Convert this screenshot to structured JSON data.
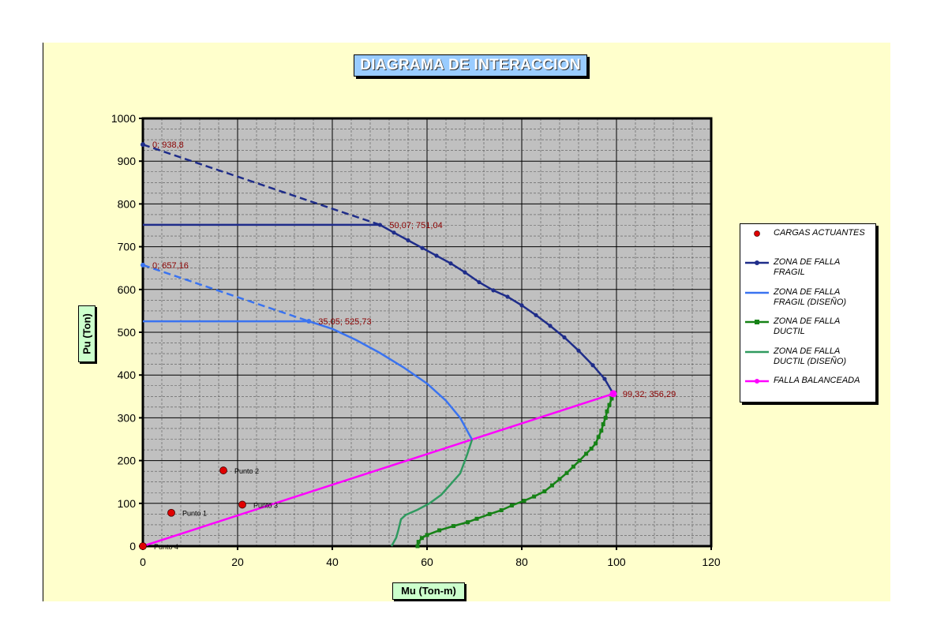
{
  "title": "DIAGRAMA  DE INTERACCION",
  "chart_data": {
    "type": "line",
    "title": "DIAGRAMA  DE INTERACCION",
    "xlabel": "Mu (Ton-m)",
    "ylabel": "Pu (Ton)",
    "xlim": [
      0,
      120
    ],
    "ylim": [
      0,
      1000
    ],
    "xticks": [
      0,
      20,
      40,
      60,
      80,
      100,
      120
    ],
    "yticks": [
      0,
      100,
      200,
      300,
      400,
      500,
      600,
      700,
      800,
      900,
      1000
    ],
    "grid": true,
    "legend_position": "right",
    "colors": {
      "fragil": "#1f2d8a",
      "fragil_diseno": "#3a73f0",
      "ductil": "#168216",
      "ductil_diseno": "#2f9a5f",
      "balanceada": "#ff00ff",
      "cargas": "#e00000",
      "plot_bg": "#c0c0c0",
      "label_color": "#8b0000"
    },
    "series": [
      {
        "name": "CARGAS ACTUANTES",
        "key": "cargas",
        "points": [
          [
            0,
            0
          ],
          [
            6,
            78
          ],
          [
            17,
            177
          ],
          [
            21,
            97
          ]
        ],
        "point_labels": [
          "Punto 4",
          "Punto 1",
          "Punto 2",
          "Punto 3"
        ]
      },
      {
        "name": "ZONA  DE FALLA FRAGIL",
        "key": "fragil",
        "dashed": [
          [
            0,
            938.8
          ],
          [
            50.07,
            751.04
          ]
        ],
        "solid_horizontal": [
          [
            0,
            751.04
          ],
          [
            50.07,
            751.04
          ]
        ],
        "points": [
          [
            50.07,
            751.04
          ],
          [
            53,
            733
          ],
          [
            56,
            715
          ],
          [
            59,
            697
          ],
          [
            62,
            679
          ],
          [
            65,
            661
          ],
          [
            68,
            640
          ],
          [
            71,
            617
          ],
          [
            74,
            598
          ],
          [
            77,
            583
          ],
          [
            80,
            563
          ],
          [
            83,
            540
          ],
          [
            86,
            515
          ],
          [
            89,
            488
          ],
          [
            92,
            457
          ],
          [
            95,
            423
          ],
          [
            97.5,
            391
          ],
          [
            99.32,
            356.29
          ]
        ]
      },
      {
        "name": "ZONA DE FALLA FRAGIL (DISEÑO)",
        "key": "fragil_diseno",
        "dashed": [
          [
            0,
            657.16
          ],
          [
            35.05,
            525.73
          ]
        ],
        "solid_horizontal": [
          [
            0,
            525.73
          ],
          [
            35.05,
            525.73
          ]
        ],
        "points": [
          [
            35.05,
            525.73
          ],
          [
            40,
            508
          ],
          [
            45,
            482
          ],
          [
            50,
            452
          ],
          [
            55,
            418
          ],
          [
            60,
            380
          ],
          [
            64,
            340
          ],
          [
            67,
            300
          ],
          [
            69.5,
            249
          ]
        ]
      },
      {
        "name": "ZONA DE FALLA DUCTIL",
        "key": "ductil",
        "points": [
          [
            99.32,
            356.29
          ],
          [
            99,
            345
          ],
          [
            98.5,
            330
          ],
          [
            98,
            315
          ],
          [
            97.7,
            300
          ],
          [
            97.2,
            285
          ],
          [
            96.8,
            270
          ],
          [
            96.2,
            255
          ],
          [
            95.6,
            240
          ],
          [
            94.7,
            228
          ],
          [
            93.6,
            216
          ],
          [
            92.2,
            200
          ],
          [
            90.9,
            186
          ],
          [
            89.5,
            171
          ],
          [
            88,
            157
          ],
          [
            86.4,
            142
          ],
          [
            84.8,
            128
          ],
          [
            82.6,
            116
          ],
          [
            80.5,
            106
          ],
          [
            77.9,
            95
          ],
          [
            75.7,
            84
          ],
          [
            73.2,
            75
          ],
          [
            70.5,
            64
          ],
          [
            68.6,
            56
          ],
          [
            65.6,
            47
          ],
          [
            62.6,
            37
          ],
          [
            60,
            26
          ],
          [
            58.9,
            19
          ],
          [
            58.2,
            10
          ],
          [
            58,
            0
          ]
        ]
      },
      {
        "name": "ZONA DE FALLA DUCTIL (DISEÑO)",
        "key": "ductil_diseno",
        "points": [
          [
            69.5,
            249
          ],
          [
            68.5,
            215
          ],
          [
            67,
            170
          ],
          [
            65,
            145
          ],
          [
            63,
            120
          ],
          [
            60.5,
            100
          ],
          [
            58,
            85
          ],
          [
            55.5,
            73
          ],
          [
            54.5,
            63
          ],
          [
            54,
            40
          ],
          [
            53.5,
            20
          ],
          [
            52.5,
            0
          ]
        ]
      },
      {
        "name": "FALLA BALANCEADA",
        "key": "balanceada",
        "points": [
          [
            0,
            0
          ],
          [
            99.32,
            356.29
          ]
        ]
      }
    ],
    "annotations": [
      {
        "text": "0; 938,8",
        "x": 0,
        "y": 938.8
      },
      {
        "text": "50,07; 751,04",
        "x": 50.07,
        "y": 751.04
      },
      {
        "text": "0; 657,16",
        "x": 0,
        "y": 657.16
      },
      {
        "text": "35,05; 525,73",
        "x": 35.05,
        "y": 525.73
      },
      {
        "text": "99,32; 356,29",
        "x": 99.32,
        "y": 356.29
      }
    ]
  },
  "legend": [
    {
      "label": "CARGAS ACTUANTES",
      "key": "cargas"
    },
    {
      "label": "ZONA  DE FALLA FRAGIL",
      "key": "fragil"
    },
    {
      "label": "ZONA DE FALLA FRAGIL (DISEÑO)",
      "key": "fragil_diseno"
    },
    {
      "label": "ZONA DE FALLA DUCTIL",
      "key": "ductil"
    },
    {
      "label": "ZONA DE FALLA DUCTIL (DISEÑO)",
      "key": "ductil_diseno"
    },
    {
      "label": "FALLA BALANCEADA",
      "key": "balanceada"
    }
  ]
}
